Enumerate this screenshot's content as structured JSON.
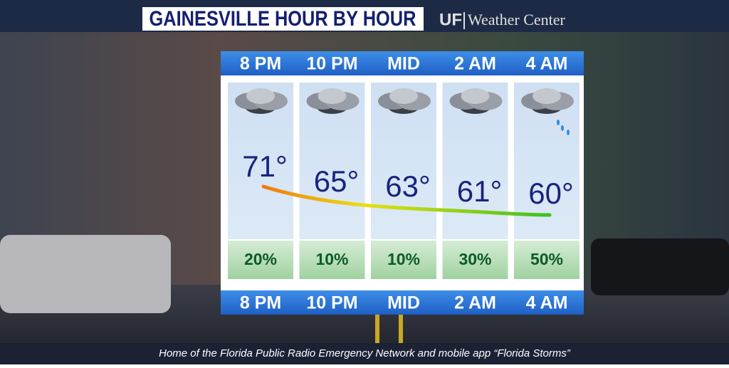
{
  "header": {
    "title": "GAINESVILLE HOUR BY HOUR",
    "brand_short": "UF",
    "brand_name": "Weather Center"
  },
  "columns": [
    {
      "time": "8 PM",
      "temp": "71°",
      "precip": "20%"
    },
    {
      "time": "10 PM",
      "temp": "65°",
      "precip": "10%"
    },
    {
      "time": "MID",
      "temp": "63°",
      "precip": "10%"
    },
    {
      "time": "2 AM",
      "temp": "61°",
      "precip": "30%"
    },
    {
      "time": "4 AM",
      "temp": "60°",
      "precip": "50%"
    }
  ],
  "footer": "Home of the Florida Public Radio Emergency Network and mobile app “Florida Storms”"
}
